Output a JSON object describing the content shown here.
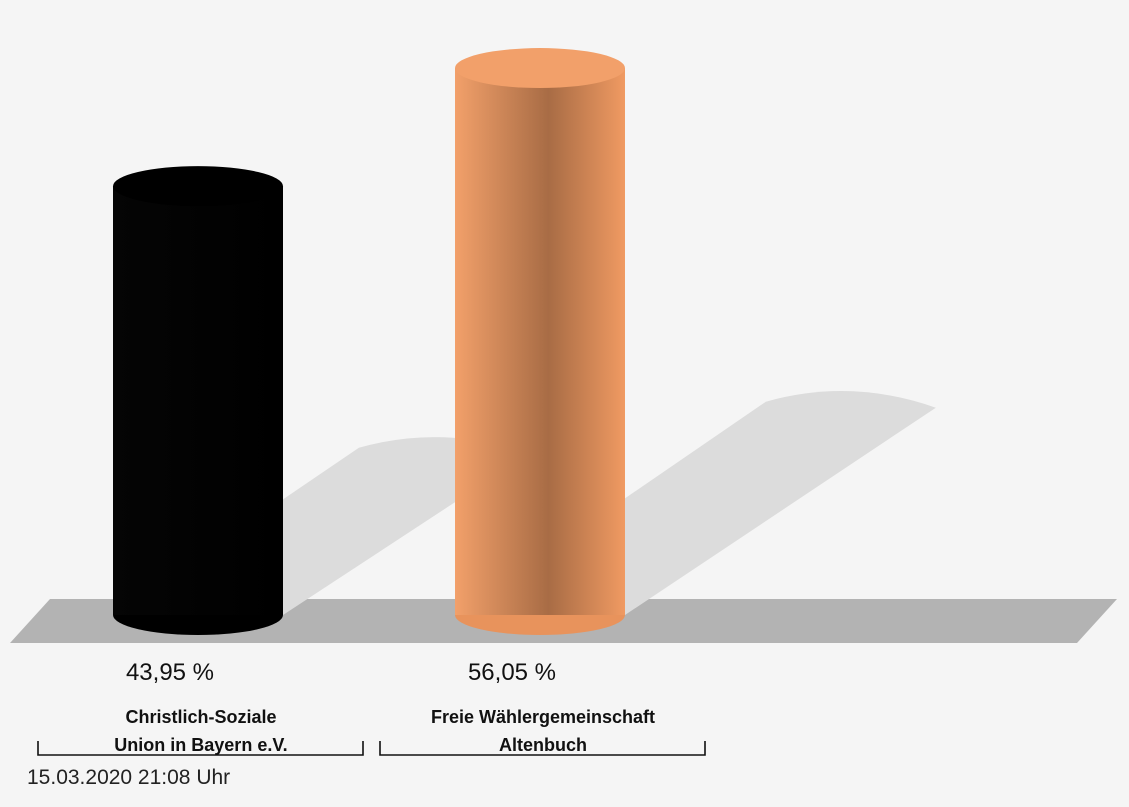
{
  "chart_data": {
    "type": "bar",
    "categories": [
      [
        "Christlich-Soziale",
        "Union in Bayern e.V."
      ],
      [
        "Freie Wählergemeinschaft",
        "Altenbuch"
      ]
    ],
    "values": [
      43.95,
      56.05
    ],
    "value_labels": [
      "43,95 %",
      "56,05 %"
    ],
    "ylim": [
      0,
      62
    ],
    "colors": [
      "#000000",
      "#f09a62"
    ],
    "style": "3d-cylinder",
    "grid": false,
    "legend": "none"
  },
  "timestamp": "15.03.2020 21:08 Uhr"
}
